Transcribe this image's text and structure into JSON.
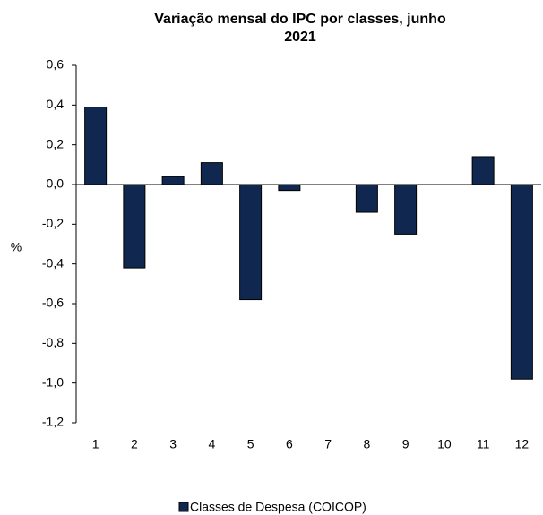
{
  "chart_data": {
    "type": "bar",
    "title": "Variação mensal do IPC por classes, junho 2021",
    "y_label": "%",
    "categories": [
      "1",
      "2",
      "3",
      "4",
      "5",
      "6",
      "7",
      "8",
      "9",
      "10",
      "11",
      "12"
    ],
    "series": [
      {
        "name": "Classes de Despesa (COICOP)",
        "color": "#10284f",
        "values": [
          0.39,
          -0.42,
          0.04,
          0.11,
          -0.58,
          -0.03,
          0,
          -0.14,
          -0.25,
          0,
          0.14,
          -0.98
        ]
      }
    ],
    "ylim": [
      -1.2,
      0.6
    ],
    "yticks": [
      {
        "value": 0.6,
        "label": "0,6"
      },
      {
        "value": 0.4,
        "label": "0,4"
      },
      {
        "value": 0.2,
        "label": "0,2"
      },
      {
        "value": 0,
        "label": "0,0"
      },
      {
        "value": -0.2,
        "label": "-0,2"
      },
      {
        "value": -0.4,
        "label": "-0,4"
      },
      {
        "value": -0.6,
        "label": "-0,6"
      },
      {
        "value": -0.8,
        "label": "-0,8"
      },
      {
        "value": -1,
        "label": "-1,0"
      },
      {
        "value": -1.2,
        "label": "-1,2"
      }
    ],
    "legend": "bottom"
  }
}
